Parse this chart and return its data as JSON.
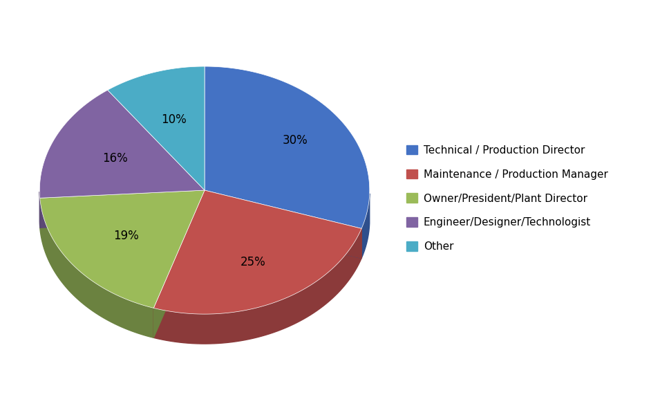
{
  "labels": [
    "Technical / Production Director",
    "Maintenance / Production Manager",
    "Owner/President/Plant Director",
    "Engineer/Designer/Technologist",
    "Other"
  ],
  "values": [
    30,
    25,
    19,
    16,
    10
  ],
  "colors": [
    "#4472C4",
    "#C0504D",
    "#9BBB59",
    "#8064A2",
    "#4BACC6"
  ],
  "dark_colors": [
    "#2E4F8C",
    "#8B3A3A",
    "#6B8240",
    "#5B4875",
    "#2E7A8C"
  ],
  "startangle": 90,
  "legend_fontsize": 11,
  "autopct_fontsize": 12,
  "background_color": "#ffffff",
  "pct_labels": [
    "30%",
    "25%",
    "19%",
    "16%",
    "10%"
  ],
  "pct_distances": [
    0.68,
    0.65,
    0.6,
    0.6,
    0.6
  ]
}
